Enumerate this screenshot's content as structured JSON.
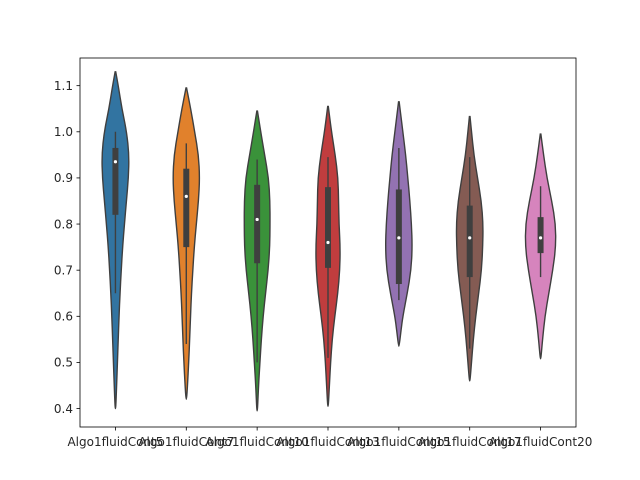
{
  "chart_data": {
    "type": "violin",
    "title": "",
    "xlabel": "",
    "ylabel": "",
    "ylim": [
      0.36,
      1.16
    ],
    "yticks": [
      0.4,
      0.5,
      0.6,
      0.7,
      0.8,
      0.9,
      1.0,
      1.1
    ],
    "ytick_labels": [
      "0.4",
      "0.5",
      "0.6",
      "0.7",
      "0.8",
      "0.9",
      "1.0",
      "1.1"
    ],
    "grid": false,
    "categories": [
      "Algo1fluidCont5",
      "Algo1fluidCont7",
      "Algo1fluidCont10",
      "Algo1fluidCont13",
      "Algo1fluidCont15",
      "Algo1fluidCont17",
      "Algo1fluidCont20"
    ],
    "colors": [
      "#3274a1",
      "#e1812c",
      "#3a923a",
      "#c03d3e",
      "#9372b2",
      "#845b53",
      "#d684bd"
    ],
    "violins": [
      {
        "min": 0.4,
        "max": 1.13,
        "whisker_low": 0.65,
        "whisker_high": 1.0,
        "q1": 0.82,
        "q3": 0.965,
        "median": 0.935,
        "density": [
          [
            0.4,
            0.3
          ],
          [
            0.45,
            1.2
          ],
          [
            0.5,
            2.0
          ],
          [
            0.55,
            2.8
          ],
          [
            0.6,
            3.6
          ],
          [
            0.65,
            4.6
          ],
          [
            0.7,
            5.8
          ],
          [
            0.75,
            7.2
          ],
          [
            0.8,
            9.0
          ],
          [
            0.85,
            11.0
          ],
          [
            0.9,
            13.0
          ],
          [
            0.95,
            13.6
          ],
          [
            1.0,
            11.2
          ],
          [
            1.05,
            6.5
          ],
          [
            1.1,
            2.8
          ],
          [
            1.13,
            0.3
          ]
        ]
      },
      {
        "min": 0.42,
        "max": 1.095,
        "whisker_low": 0.54,
        "whisker_high": 0.975,
        "q1": 0.75,
        "q3": 0.92,
        "median": 0.86,
        "density": [
          [
            0.42,
            0.3
          ],
          [
            0.45,
            1.2
          ],
          [
            0.5,
            2.4
          ],
          [
            0.55,
            3.4
          ],
          [
            0.6,
            4.2
          ],
          [
            0.65,
            5.2
          ],
          [
            0.7,
            6.5
          ],
          [
            0.75,
            8.0
          ],
          [
            0.8,
            10.0
          ],
          [
            0.85,
            12.2
          ],
          [
            0.9,
            13.4
          ],
          [
            0.95,
            12.2
          ],
          [
            1.0,
            8.4
          ],
          [
            1.05,
            4.4
          ],
          [
            1.095,
            0.3
          ]
        ]
      },
      {
        "min": 0.395,
        "max": 1.045,
        "whisker_low": 0.5,
        "whisker_high": 0.94,
        "q1": 0.715,
        "q3": 0.885,
        "median": 0.81,
        "density": [
          [
            0.395,
            0.3
          ],
          [
            0.45,
            1.4
          ],
          [
            0.5,
            2.8
          ],
          [
            0.55,
            4.2
          ],
          [
            0.6,
            6.0
          ],
          [
            0.65,
            8.4
          ],
          [
            0.7,
            11.0
          ],
          [
            0.75,
            12.6
          ],
          [
            0.8,
            12.9
          ],
          [
            0.85,
            12.8
          ],
          [
            0.9,
            11.4
          ],
          [
            0.95,
            7.5
          ],
          [
            1.0,
            3.6
          ],
          [
            1.045,
            0.3
          ]
        ]
      },
      {
        "min": 0.405,
        "max": 1.055,
        "whisker_low": 0.51,
        "whisker_high": 0.945,
        "q1": 0.705,
        "q3": 0.88,
        "median": 0.76,
        "density": [
          [
            0.405,
            0.3
          ],
          [
            0.45,
            1.4
          ],
          [
            0.5,
            2.6
          ],
          [
            0.55,
            4.2
          ],
          [
            0.6,
            6.8
          ],
          [
            0.65,
            9.8
          ],
          [
            0.7,
            11.8
          ],
          [
            0.75,
            12.2
          ],
          [
            0.8,
            11.0
          ],
          [
            0.85,
            10.6
          ],
          [
            0.9,
            10.0
          ],
          [
            0.95,
            7.2
          ],
          [
            1.0,
            3.5
          ],
          [
            1.055,
            0.3
          ]
        ]
      },
      {
        "min": 0.535,
        "max": 1.065,
        "whisker_low": 0.635,
        "whisker_high": 0.965,
        "q1": 0.67,
        "q3": 0.875,
        "median": 0.77,
        "density": [
          [
            0.535,
            0.3
          ],
          [
            0.57,
            2.2
          ],
          [
            0.6,
            4.0
          ],
          [
            0.65,
            8.4
          ],
          [
            0.7,
            12.2
          ],
          [
            0.75,
            13.4
          ],
          [
            0.8,
            12.6
          ],
          [
            0.85,
            11.0
          ],
          [
            0.9,
            9.0
          ],
          [
            0.95,
            6.8
          ],
          [
            1.0,
            4.0
          ],
          [
            1.065,
            0.3
          ]
        ]
      },
      {
        "min": 0.46,
        "max": 1.033,
        "whisker_low": 0.53,
        "whisker_high": 0.945,
        "q1": 0.685,
        "q3": 0.84,
        "median": 0.77,
        "density": [
          [
            0.46,
            0.3
          ],
          [
            0.5,
            1.8
          ],
          [
            0.55,
            3.6
          ],
          [
            0.6,
            6.0
          ],
          [
            0.65,
            9.0
          ],
          [
            0.7,
            11.8
          ],
          [
            0.75,
            13.0
          ],
          [
            0.8,
            13.4
          ],
          [
            0.85,
            11.6
          ],
          [
            0.9,
            7.8
          ],
          [
            0.95,
            4.2
          ],
          [
            1.0,
            1.8
          ],
          [
            1.033,
            0.3
          ]
        ]
      },
      {
        "min": 0.508,
        "max": 0.995,
        "whisker_low": 0.685,
        "whisker_high": 0.882,
        "q1": 0.737,
        "q3": 0.815,
        "median": 0.77,
        "density": [
          [
            0.508,
            0.3
          ],
          [
            0.55,
            2.0
          ],
          [
            0.6,
            4.4
          ],
          [
            0.65,
            8.2
          ],
          [
            0.7,
            12.2
          ],
          [
            0.75,
            15.2
          ],
          [
            0.8,
            15.0
          ],
          [
            0.85,
            11.2
          ],
          [
            0.9,
            6.4
          ],
          [
            0.95,
            3.0
          ],
          [
            0.995,
            0.3
          ]
        ]
      }
    ]
  }
}
